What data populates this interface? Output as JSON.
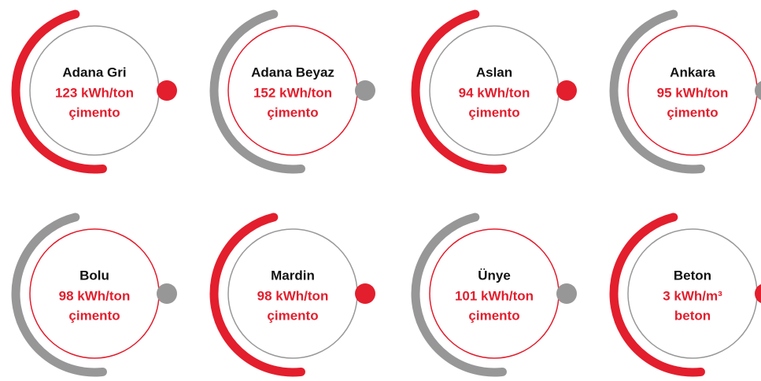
{
  "items": [
    {
      "name": "Adana Gri",
      "lines": [
        "123 kWh/ton",
        "çimento"
      ],
      "color": "#e31e2d"
    },
    {
      "name": "Adana Beyaz",
      "lines": [
        "152 kWh/ton",
        "çimento"
      ],
      "color": "#979797"
    },
    {
      "name": "Aslan",
      "lines": [
        "94 kWh/ton",
        "çimento"
      ],
      "color": "#e31e2d"
    },
    {
      "name": "Ankara",
      "lines": [
        "95 kWh/ton",
        "çimento"
      ],
      "color": "#979797"
    },
    {
      "name": "Bolu",
      "lines": [
        "98 kWh/ton",
        "çimento"
      ],
      "color": "#979797"
    },
    {
      "name": "Mardin",
      "lines": [
        "98 kWh/ton",
        "çimento"
      ],
      "color": "#e31e2d"
    },
    {
      "name": "Ünye",
      "lines": [
        "101 kWh/ton",
        "çimento"
      ],
      "color": "#979797"
    },
    {
      "name": "Beton",
      "lines": [
        "3 kWh/m³",
        "beton"
      ],
      "color": "#e31e2d"
    }
  ]
}
